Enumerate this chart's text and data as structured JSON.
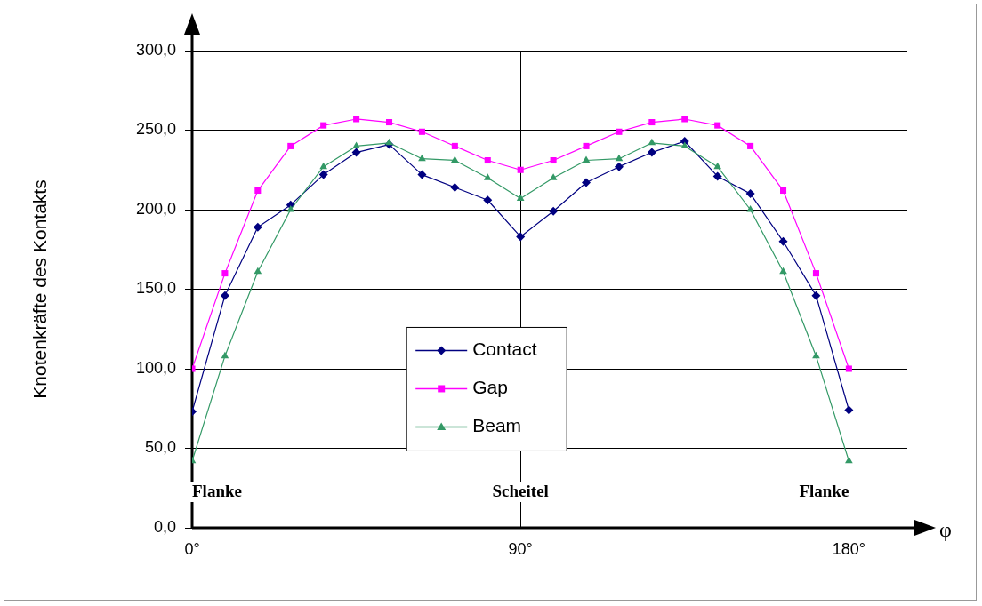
{
  "chart_data": {
    "type": "line",
    "xlabel": "φ",
    "ylabel": "Knotenkräfte des Kontakts",
    "x": [
      0,
      9,
      18,
      27,
      36,
      45,
      54,
      63,
      72,
      81,
      90,
      99,
      108,
      117,
      126,
      135,
      144,
      153,
      162,
      171,
      180
    ],
    "series": [
      {
        "name": "Contact",
        "color": "#000080",
        "marker": "diamond",
        "values": [
          73,
          146,
          189,
          203,
          222,
          236,
          241,
          222,
          214,
          206,
          183,
          199,
          217,
          227,
          236,
          243,
          221,
          210,
          180,
          146,
          74
        ]
      },
      {
        "name": "Gap",
        "color": "#ff00ff",
        "marker": "square",
        "values": [
          100,
          160,
          212,
          240,
          253,
          257,
          255,
          249,
          240,
          231,
          225,
          231,
          240,
          249,
          255,
          257,
          253,
          240,
          212,
          160,
          100
        ]
      },
      {
        "name": "Beam",
        "color": "#339966",
        "marker": "triangle",
        "values": [
          42,
          108,
          161,
          200,
          227,
          240,
          242,
          232,
          231,
          220,
          207,
          220,
          231,
          232,
          242,
          240,
          227,
          200,
          161,
          108,
          42
        ]
      }
    ],
    "xlim": [
      0,
      196
    ],
    "xticks": [
      {
        "value": 0,
        "label": "0°"
      },
      {
        "value": 90,
        "label": "90°"
      },
      {
        "value": 180,
        "label": "180°"
      }
    ],
    "ylim": [
      0,
      300
    ],
    "yticks": [
      {
        "value": 0,
        "label": "0,0"
      },
      {
        "value": 50,
        "label": "50,0"
      },
      {
        "value": 100,
        "label": "100,0"
      },
      {
        "value": 150,
        "label": "150,0"
      },
      {
        "value": 200,
        "label": "200,0"
      },
      {
        "value": 250,
        "label": "250,0"
      },
      {
        "value": 300,
        "label": "300,0"
      }
    ],
    "grid": true,
    "legend": "center",
    "line_style": "solid",
    "annotations": [
      "Flanke",
      "Scheitel",
      "Flanke"
    ]
  }
}
